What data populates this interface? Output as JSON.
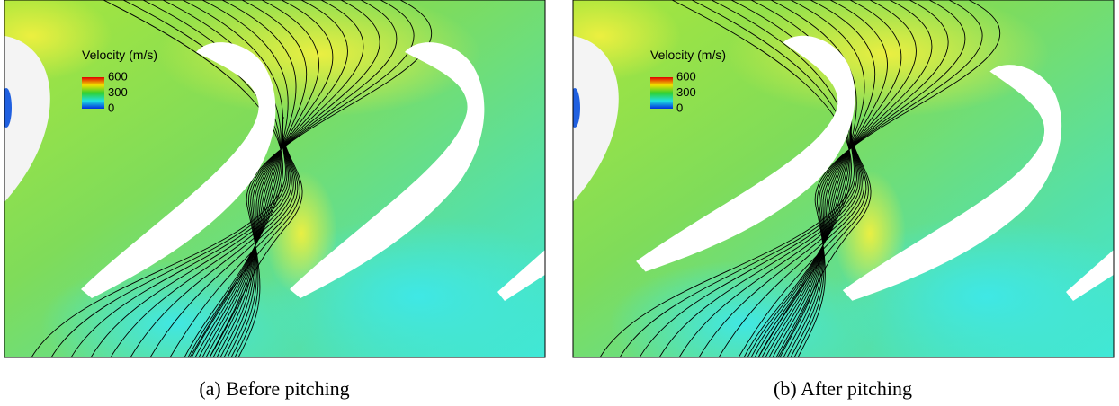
{
  "panels": [
    {
      "legend": {
        "title": "Velocity (m/s)",
        "ticks": [
          600,
          300,
          0
        ]
      },
      "caption": "(a) Before pitching"
    },
    {
      "legend": {
        "title": "Velocity (m/s)",
        "ticks": [
          600,
          300,
          0
        ]
      },
      "caption": "(b) After pitching"
    }
  ]
}
